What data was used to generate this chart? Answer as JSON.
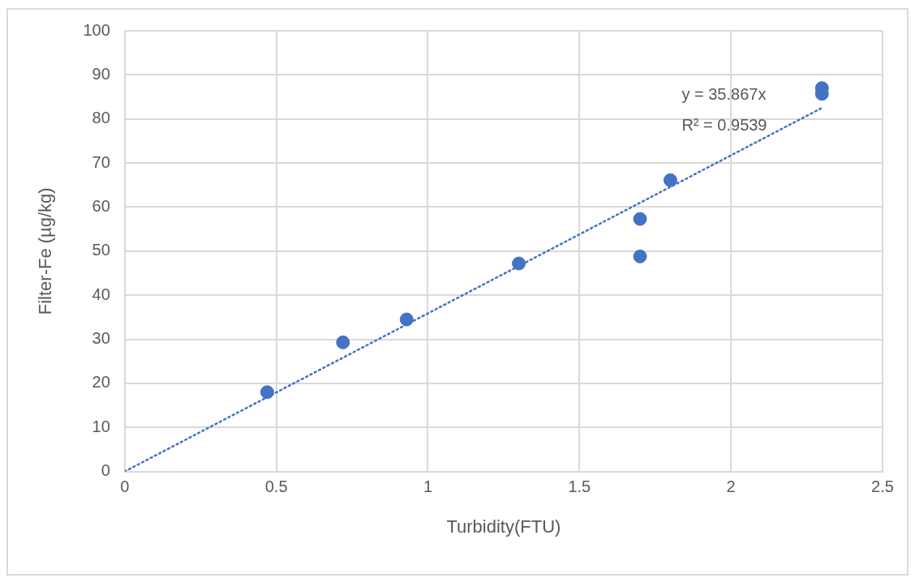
{
  "chart_data": {
    "type": "scatter",
    "xlabel": "Turbidity(FTU)",
    "ylabel": "Filter-Fe (µg/kg)",
    "xlim": [
      0,
      2.5
    ],
    "xticks": [
      0,
      0.5,
      1,
      1.5,
      2,
      2.5
    ],
    "ylim": [
      0,
      100
    ],
    "yticks": [
      0,
      10,
      20,
      30,
      40,
      50,
      60,
      70,
      80,
      90,
      100
    ],
    "grid": true,
    "legend": false,
    "marker": "circle",
    "series": [
      {
        "color": "#4472c4",
        "x": [
          0.47,
          0.72,
          0.93,
          1.3,
          1.7,
          1.7,
          1.8,
          2.3,
          2.3
        ],
        "values": [
          18,
          29.3,
          34.5,
          47.2,
          57.3,
          48.8,
          66.1,
          87,
          85.7
        ]
      },
      {
        "type": "line",
        "color": "#4472c4",
        "line_style": "dotted",
        "marker": "none",
        "x": [
          0,
          2.3
        ],
        "values": [
          0,
          82.5
        ]
      }
    ],
    "annotations": [
      "y = 35.867x",
      "R² = 0.9539"
    ]
  }
}
